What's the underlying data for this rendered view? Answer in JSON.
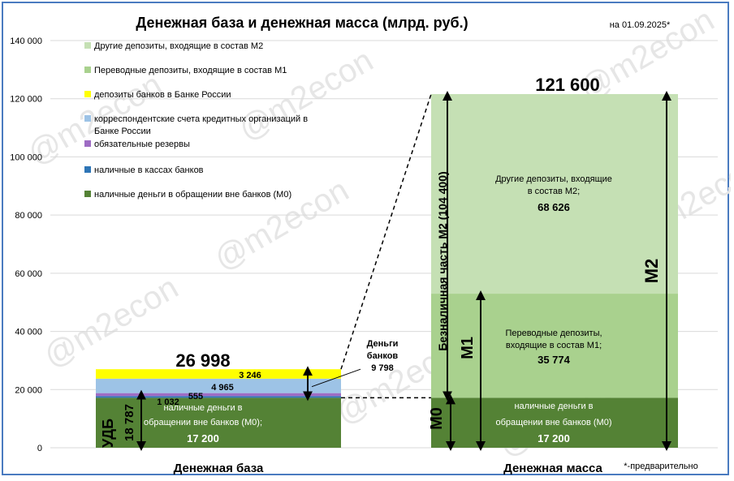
{
  "chart_data": {
    "type": "bar",
    "title": "Денежная база и денежная масса (млрд. руб.)",
    "date_note": "на 01.09.2025*",
    "footnote": "*-предварительно",
    "watermark": "@m2econ",
    "ylim": [
      0,
      140000
    ],
    "yticks": [
      {
        "value": 0,
        "label": "0"
      },
      {
        "value": 20000,
        "label": "20 000"
      },
      {
        "value": 40000,
        "label": "40 000"
      },
      {
        "value": 60000,
        "label": "60 000"
      },
      {
        "value": 80000,
        "label": "80 000"
      },
      {
        "value": 100000,
        "label": "100 000"
      },
      {
        "value": 120000,
        "label": "120 000"
      },
      {
        "value": 140000,
        "label": "140 000"
      }
    ],
    "grid": true,
    "legend_position": "top-left",
    "categories": [
      "Денежная база",
      "Денежная масса"
    ],
    "series": [
      {
        "key": "m0",
        "name": "наличные деньги в обращении вне банков (М0)",
        "color": "#548235",
        "values": [
          17200,
          17200
        ]
      },
      {
        "key": "cash_banks",
        "name": "наличные в кассах банков",
        "color": "#2e75b6",
        "values": [
          555,
          0
        ]
      },
      {
        "key": "reserves",
        "name": "обязательные резервы",
        "color": "#9e6cc4",
        "values": [
          1032,
          0
        ]
      },
      {
        "key": "corr",
        "name": "корреспондентские счета кредитных организаций в Банке России",
        "color": "#9dc3e6",
        "values": [
          4965,
          0
        ]
      },
      {
        "key": "deposits_cbr",
        "name": "депозиты банков в Банке России",
        "color": "#ffff00",
        "values": [
          3246,
          0
        ]
      },
      {
        "key": "transfer",
        "name": "Переводные депозиты, входящие в состав М1",
        "color": "#a9d18e",
        "values": [
          0,
          35774
        ]
      },
      {
        "key": "other",
        "name": "Другие депозиты, входящие в состав М2",
        "color": "#c5e0b4",
        "values": [
          0,
          68626
        ]
      }
    ],
    "totals": {
      "base": "26 998",
      "mass": "121 600"
    },
    "base_labels": {
      "deposits_cbr": "3 246",
      "corr": "4 965",
      "cash_banks": "555",
      "reserves": "1 032",
      "m0_line1": "наличные деньги в",
      "m0_line2": "обращении вне банков (М0);",
      "m0_value": "17 200"
    },
    "mass_labels": {
      "other_line1": "Другие депозиты, входящие",
      "other_line2": "в состав М2;",
      "other_value": "68 626",
      "transfer_line1": "Переводные депозиты,",
      "transfer_line2": "входящие в состав М1;",
      "transfer_value": "35 774",
      "m0_line1": "наличные деньги в",
      "m0_line2": "обращении вне банков (М0)",
      "m0_value": "17 200"
    },
    "annotations": {
      "bank_money_line1": "Деньги",
      "bank_money_line2": "банков",
      "bank_money_value": "9 798",
      "udb": "УДБ",
      "udb_value": "18 787",
      "noncash": "Безналичная часть М2 (104 400)",
      "m0": "М0",
      "m1": "М1",
      "m2": "М2"
    },
    "bank_money_value": 9798,
    "udb_value": 18787,
    "noncash_value": 104400,
    "xlabels": [
      "Денежная база",
      "Денежная масса"
    ]
  }
}
